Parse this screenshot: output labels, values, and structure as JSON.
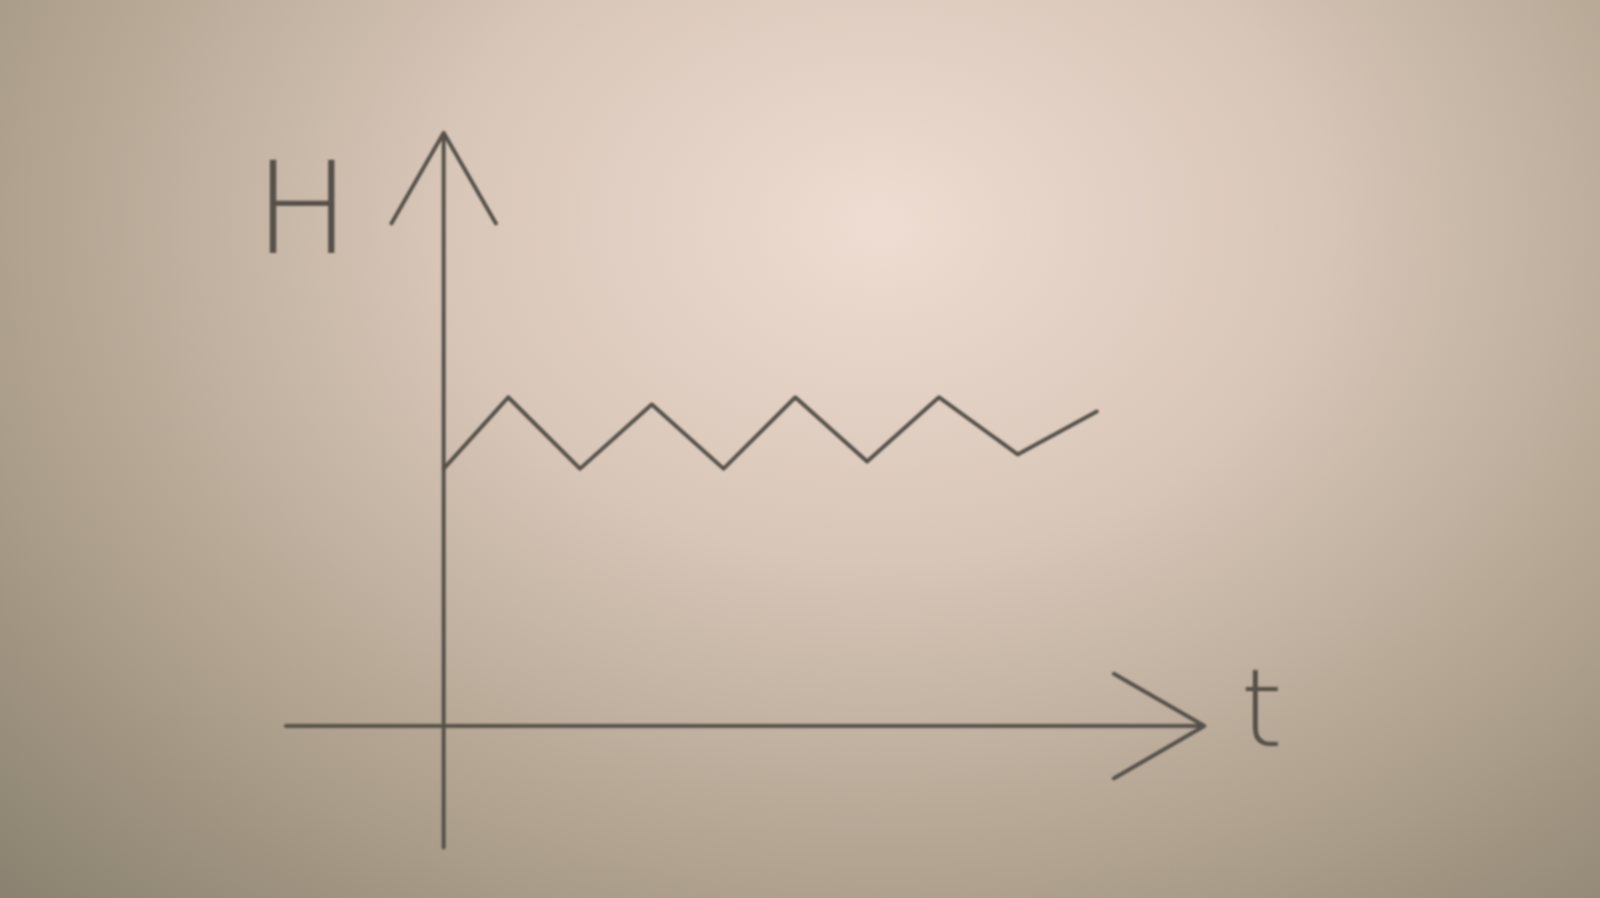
{
  "chart_data": {
    "type": "line",
    "xlabel": "t",
    "ylabel": "H",
    "x": [
      0,
      0.9,
      1.9,
      2.9,
      3.9,
      4.9,
      5.9,
      6.9,
      8.0,
      9.1
    ],
    "values": [
      3.6,
      4.6,
      3.6,
      4.5,
      3.6,
      4.6,
      3.7,
      4.6,
      3.8,
      4.4
    ],
    "xlim": [
      -2.2,
      10.6
    ],
    "ylim": [
      -1.7,
      8.3
    ],
    "tick_labels": false,
    "grid": false,
    "color": "#555049"
  }
}
